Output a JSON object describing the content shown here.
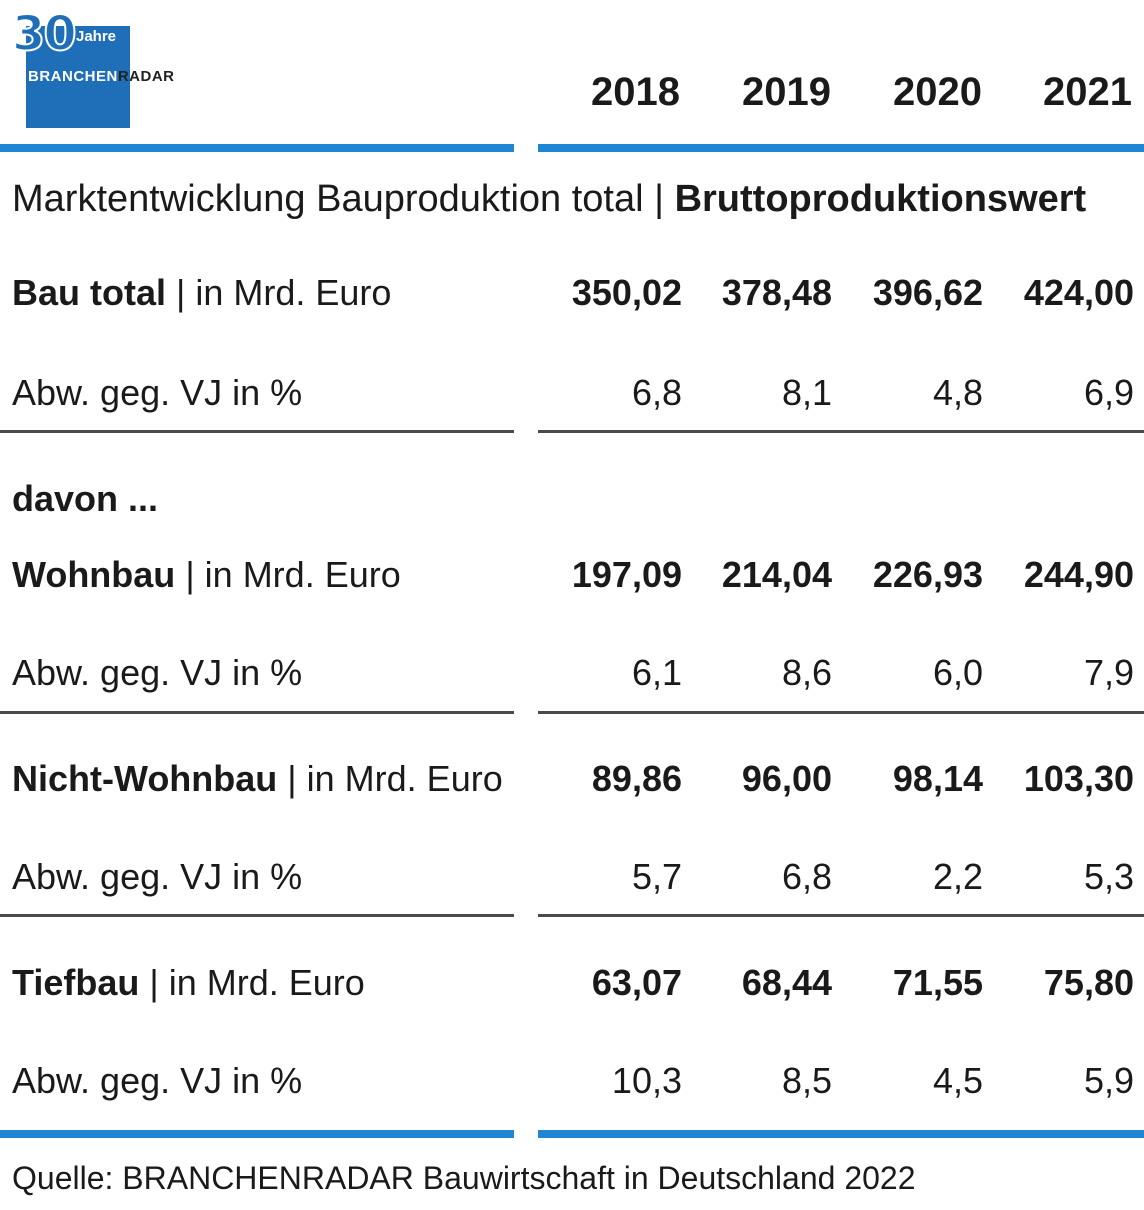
{
  "logo": {
    "number": "30",
    "years_label": "Jahre",
    "brand_part1": "BRANCHEN",
    "brand_part2": "RADAR"
  },
  "years": [
    "2018",
    "2019",
    "2020",
    "2021"
  ],
  "subtitle": {
    "normal": "Marktentwicklung Bauproduktion total | ",
    "bold": "Bruttoproduktionswert"
  },
  "davon": "davon ...",
  "colors": {
    "accent_blue": "#1f86d6",
    "logo_blue": "#1f6fb8",
    "divider": "#4a4a4a"
  },
  "rows": [
    {
      "name": "Bau total",
      "unit": " | in Mrd. Euro",
      "values": [
        "350,02",
        "378,48",
        "396,62",
        "424,00"
      ]
    },
    {
      "name": "Abw. geg. VJ in %",
      "values": [
        "6,8",
        "8,1",
        "4,8",
        "6,9"
      ]
    },
    {
      "name": "Wohnbau",
      "unit": " | in Mrd. Euro",
      "values": [
        "197,09",
        "214,04",
        "226,93",
        "244,90"
      ]
    },
    {
      "name": "Abw. geg. VJ in %",
      "values": [
        "6,1",
        "8,6",
        "6,0",
        "7,9"
      ]
    },
    {
      "name": "Nicht-Wohnbau",
      "unit": " | in Mrd. Euro",
      "values": [
        "89,86",
        "96,00",
        "98,14",
        "103,30"
      ]
    },
    {
      "name": "Abw. geg. VJ in %",
      "values": [
        "5,7",
        "6,8",
        "2,2",
        "5,3"
      ]
    },
    {
      "name": "Tiefbau",
      "unit": " | in Mrd. Euro",
      "values": [
        "63,07",
        "68,44",
        "71,55",
        "75,80"
      ]
    },
    {
      "name": "Abw. geg. VJ in %",
      "values": [
        "10,3",
        "8,5",
        "4,5",
        "5,9"
      ]
    }
  ],
  "source": "Quelle: BRANCHENRADAR Bauwirtschaft in Deutschland 2022",
  "chart_data": {
    "type": "table",
    "title": "Marktentwicklung Bauproduktion total | Bruttoproduktionswert",
    "columns": [
      "2018",
      "2019",
      "2020",
      "2021"
    ],
    "series": [
      {
        "name": "Bau total | in Mrd. Euro",
        "values": [
          350.02,
          378.48,
          396.62,
          424.0
        ]
      },
      {
        "name": "Bau total Abw. geg. VJ in %",
        "values": [
          6.8,
          8.1,
          4.8,
          6.9
        ]
      },
      {
        "name": "Wohnbau | in Mrd. Euro",
        "values": [
          197.09,
          214.04,
          226.93,
          244.9
        ]
      },
      {
        "name": "Wohnbau Abw. geg. VJ in %",
        "values": [
          6.1,
          8.6,
          6.0,
          7.9
        ]
      },
      {
        "name": "Nicht-Wohnbau | in Mrd. Euro",
        "values": [
          89.86,
          96.0,
          98.14,
          103.3
        ]
      },
      {
        "name": "Nicht-Wohnbau Abw. geg. VJ in %",
        "values": [
          5.7,
          6.8,
          2.2,
          5.3
        ]
      },
      {
        "name": "Tiefbau | in Mrd. Euro",
        "values": [
          63.07,
          68.44,
          71.55,
          75.8
        ]
      },
      {
        "name": "Tiefbau Abw. geg. VJ in %",
        "values": [
          10.3,
          8.5,
          4.5,
          5.9
        ]
      }
    ]
  }
}
